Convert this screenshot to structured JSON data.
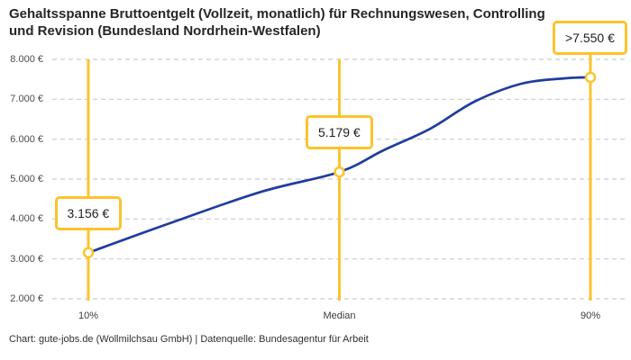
{
  "header": {
    "title_line1": "Gehaltsspanne Bruttoentgelt (Vollzeit, monatlich) für Rechnungswesen, Controlling",
    "title_line2": "und Revision (Bundesland Nordrhein-Westfalen)"
  },
  "footer": {
    "credit": "Chart: gute-jobs.de (Wollmilchsau GmbH) | Datenquelle: Bundesagentur für Arbeit"
  },
  "chart_data": {
    "type": "line",
    "title": "Gehaltsspanne Bruttoentgelt (Vollzeit, monatlich) für Rechnungswesen, Controlling und Revision (Bundesland Nordrhein-Westfalen)",
    "ylim": [
      2000,
      8000
    ],
    "grid": "horizontal-dashed",
    "y_axis": {
      "ticks": [
        {
          "value": 8000,
          "label": "8.000 €"
        },
        {
          "value": 7000,
          "label": "7.000 €"
        },
        {
          "value": 6000,
          "label": "6.000 €"
        },
        {
          "value": 5000,
          "label": "5.000 €"
        },
        {
          "value": 4000,
          "label": "4.000 €"
        },
        {
          "value": 3000,
          "label": "3.000 €"
        },
        {
          "value": 2000,
          "label": "2.000 €"
        }
      ]
    },
    "x_axis": {
      "ticks": [
        "10%",
        "Median",
        "90%"
      ]
    },
    "points": [
      {
        "x": "10%",
        "percentile": 10,
        "value": 3156,
        "label": "3.156 €"
      },
      {
        "x": "Median",
        "percentile": 50,
        "value": 5179,
        "label": "5.179 €"
      },
      {
        "x": "90%",
        "percentile": 90,
        "value": 7550,
        "label": ">7.550 €"
      }
    ],
    "curve": {
      "percentiles": [
        10,
        23,
        37.5,
        50,
        57,
        64.5,
        71.5,
        79,
        86,
        90
      ],
      "values": [
        3156,
        3895,
        4680,
        5179,
        5720,
        6265,
        6940,
        7390,
        7527,
        7550
      ]
    },
    "colors": {
      "line": "#1F3D9E",
      "accent": "#FBC32D",
      "grid": "#CCCCCC"
    }
  }
}
